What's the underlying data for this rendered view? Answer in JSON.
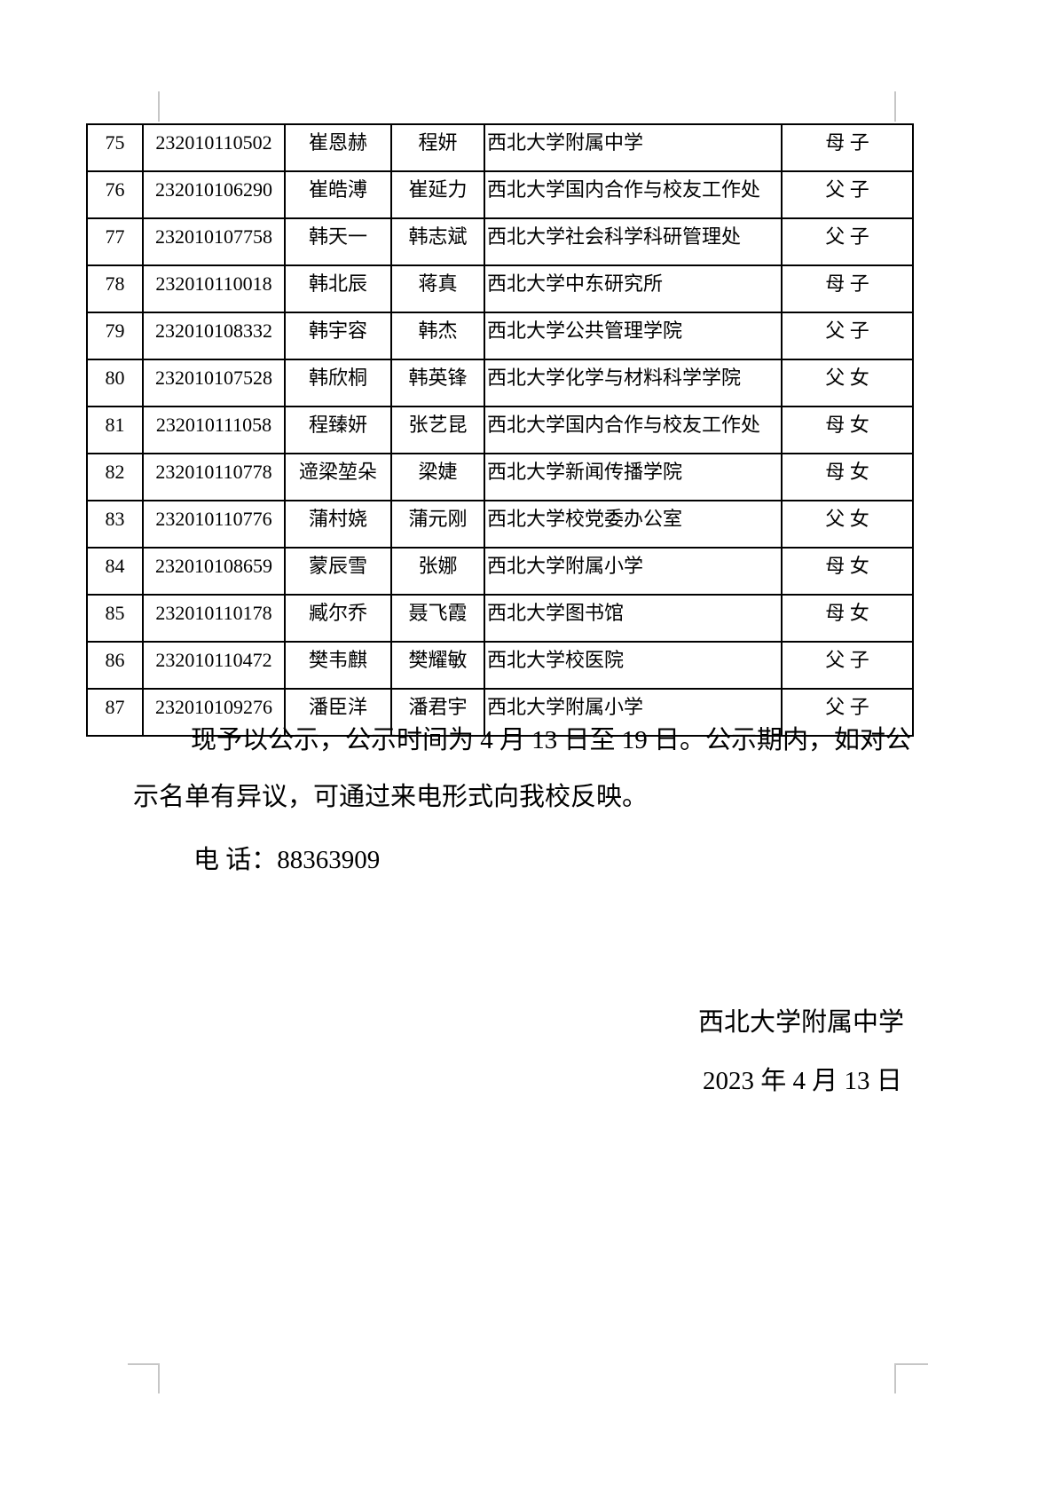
{
  "page": {
    "notice_line1": "现予以公示，公示时间为 4 月 13 日至 19 日。公示期内，如对公",
    "notice_line2": "示名单有异议，可通过来电形式向我校反映。",
    "phone": "电 话：88363909",
    "signature": "西北大学附属中学",
    "date": "2023 年 4 月 13 日"
  },
  "table": {
    "rows": [
      {
        "no": "75",
        "id": "232010110502",
        "student": "崔恩赫",
        "parent": "程妍",
        "unit": "西北大学附属中学",
        "relation": "母 子"
      },
      {
        "no": "76",
        "id": "232010106290",
        "student": "崔皓溥",
        "parent": "崔延力",
        "unit": "西北大学国内合作与校友工作处",
        "relation": "父 子"
      },
      {
        "no": "77",
        "id": "232010107758",
        "student": "韩天一",
        "parent": "韩志斌",
        "unit": "西北大学社会科学科研管理处",
        "relation": "父 子"
      },
      {
        "no": "78",
        "id": "232010110018",
        "student": "韩北辰",
        "parent": "蒋真",
        "unit": "西北大学中东研究所",
        "relation": "母 子"
      },
      {
        "no": "79",
        "id": "232010108332",
        "student": "韩宇容",
        "parent": "韩杰",
        "unit": "西北大学公共管理学院",
        "relation": "父 子"
      },
      {
        "no": "80",
        "id": "232010107528",
        "student": "韩欣桐",
        "parent": "韩英锋",
        "unit": "西北大学化学与材料科学学院",
        "relation": "父 女"
      },
      {
        "no": "81",
        "id": "232010111058",
        "student": "程臻妍",
        "parent": "张艺昆",
        "unit": "西北大学国内合作与校友工作处",
        "relation": "母 女"
      },
      {
        "no": "82",
        "id": "232010110778",
        "student": "遆梁堃朵",
        "parent": "梁婕",
        "unit": "西北大学新闻传播学院",
        "relation": "母 女"
      },
      {
        "no": "83",
        "id": "232010110776",
        "student": "蒲村娆",
        "parent": "蒲元刚",
        "unit": "西北大学校党委办公室",
        "relation": "父 女"
      },
      {
        "no": "84",
        "id": "232010108659",
        "student": "蒙辰雪",
        "parent": "张娜",
        "unit": "西北大学附属小学",
        "relation": "母 女"
      },
      {
        "no": "85",
        "id": "232010110178",
        "student": "臧尔乔",
        "parent": "聂飞霞",
        "unit": "西北大学图书馆",
        "relation": "母 女"
      },
      {
        "no": "86",
        "id": "232010110472",
        "student": "樊韦麒",
        "parent": "樊耀敏",
        "unit": "西北大学校医院",
        "relation": "父 子"
      },
      {
        "no": "87",
        "id": "232010109276",
        "student": "潘臣洋",
        "parent": "潘君宇",
        "unit": "西北大学附属小学",
        "relation": "父 子"
      }
    ]
  }
}
